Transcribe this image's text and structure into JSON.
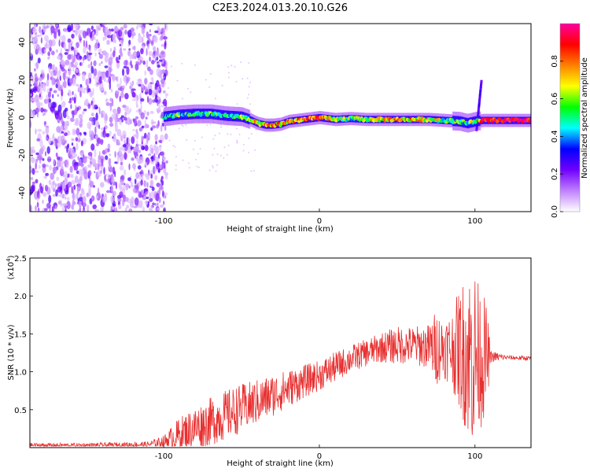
{
  "title": "C2E3.2024.013.20.10.G26",
  "chart_data": [
    {
      "type": "heatmap",
      "xlabel": "Height of straight line (km)",
      "ylabel": "Frequency (Hz)",
      "xlim": [
        -186,
        136
      ],
      "ylim": [
        -50,
        50
      ],
      "x_ticks": [
        -100,
        0,
        100
      ],
      "x_tick_labels": [
        "-100",
        "0",
        "100"
      ],
      "y_ticks": [
        -40,
        -20,
        0,
        20,
        40
      ],
      "y_tick_labels": [
        "-40",
        "-20",
        "0",
        "20",
        "40"
      ],
      "colorbar": {
        "label": "Normalized spectral amplitude",
        "range": [
          0,
          1
        ],
        "ticks": [
          0.0,
          0.2,
          0.4,
          0.6,
          0.8
        ],
        "tick_labels": [
          "0.0",
          "0.2",
          "0.4",
          "0.6",
          "0.8"
        ],
        "colormap": [
          "#ffffff",
          "#c080ff",
          "#7000ff",
          "#0000ff",
          "#00ffff",
          "#00ff00",
          "#ffff00",
          "#ff8000",
          "#ff0000",
          "#ff00a0"
        ]
      },
      "noise_region_x": [
        -186,
        -100
      ],
      "spike_x": 101,
      "ridge": {
        "x": [
          -100,
          -90,
          -80,
          -70,
          -60,
          -50,
          -45,
          -40,
          -35,
          -30,
          -25,
          -20,
          -15,
          -10,
          -5,
          0,
          10,
          20,
          30,
          40,
          50,
          60,
          70,
          80,
          90,
          95,
          100,
          105,
          110,
          120,
          136
        ],
        "y": [
          0.5,
          1.5,
          2,
          2,
          1,
          0.5,
          -1,
          -3,
          -4,
          -4,
          -3.5,
          -2,
          -1.5,
          -1,
          -0.5,
          0,
          -1,
          -0.5,
          -1,
          -1,
          -1,
          -1,
          -1,
          -1.5,
          -2,
          -3,
          -2,
          -1.5,
          -1.5,
          -1.5,
          -1.5
        ],
        "amplitude": [
          0.4,
          0.5,
          0.45,
          0.5,
          0.45,
          0.55,
          0.6,
          0.65,
          0.7,
          0.75,
          0.75,
          0.7,
          0.75,
          0.8,
          0.85,
          0.85,
          0.6,
          0.55,
          0.6,
          0.65,
          0.7,
          0.7,
          0.65,
          0.55,
          0.5,
          0.45,
          0.6,
          0.9,
          0.95,
          0.95,
          0.95
        ]
      }
    },
    {
      "type": "line",
      "xlabel": "Height of straight line (km)",
      "ylabel": "SNR (10 * v/v)",
      "y_multiplier_label": "(x10",
      "y_multiplier_exp": "4",
      "xlim": [
        -186,
        136
      ],
      "ylim": [
        0,
        25000
      ],
      "x_ticks": [
        -100,
        0,
        100
      ],
      "x_tick_labels": [
        "-100",
        "0",
        "100"
      ],
      "y_ticks": [
        5000,
        10000,
        15000,
        20000,
        25000
      ],
      "y_tick_labels": [
        "0.5",
        "1.0",
        "1.5",
        "2.0",
        "2.5"
      ],
      "series": [
        {
          "color": "#e83030",
          "envelope_x": [
            -186,
            -150,
            -110,
            -100,
            -90,
            -80,
            -70,
            -60,
            -50,
            -40,
            -30,
            -20,
            -10,
            0,
            10,
            20,
            30,
            40,
            50,
            60,
            70,
            75,
            80,
            85,
            90,
            95,
            98,
            100,
            102,
            105,
            108,
            110,
            120,
            130,
            136
          ],
          "envelope_y": [
            300,
            300,
            400,
            800,
            1700,
            2600,
            3400,
            4300,
            5200,
            6000,
            6900,
            7800,
            8700,
            9500,
            10600,
            11700,
            12500,
            13200,
            13500,
            13500,
            13300,
            13200,
            13200,
            13000,
            13000,
            12500,
            12000,
            12000,
            12000,
            12000,
            12000,
            12000,
            11900,
            11800,
            11800
          ],
          "spread_y": [
            300,
            300,
            400,
            800,
            2300,
            2800,
            3200,
            3300,
            3200,
            3000,
            2800,
            2500,
            2200,
            2000,
            2000,
            1800,
            1800,
            2000,
            2500,
            2500,
            3000,
            5000,
            4000,
            5000,
            8000,
            11000,
            12000,
            12000,
            10000,
            9000,
            6000,
            800,
            300,
            300,
            300
          ]
        }
      ]
    }
  ]
}
